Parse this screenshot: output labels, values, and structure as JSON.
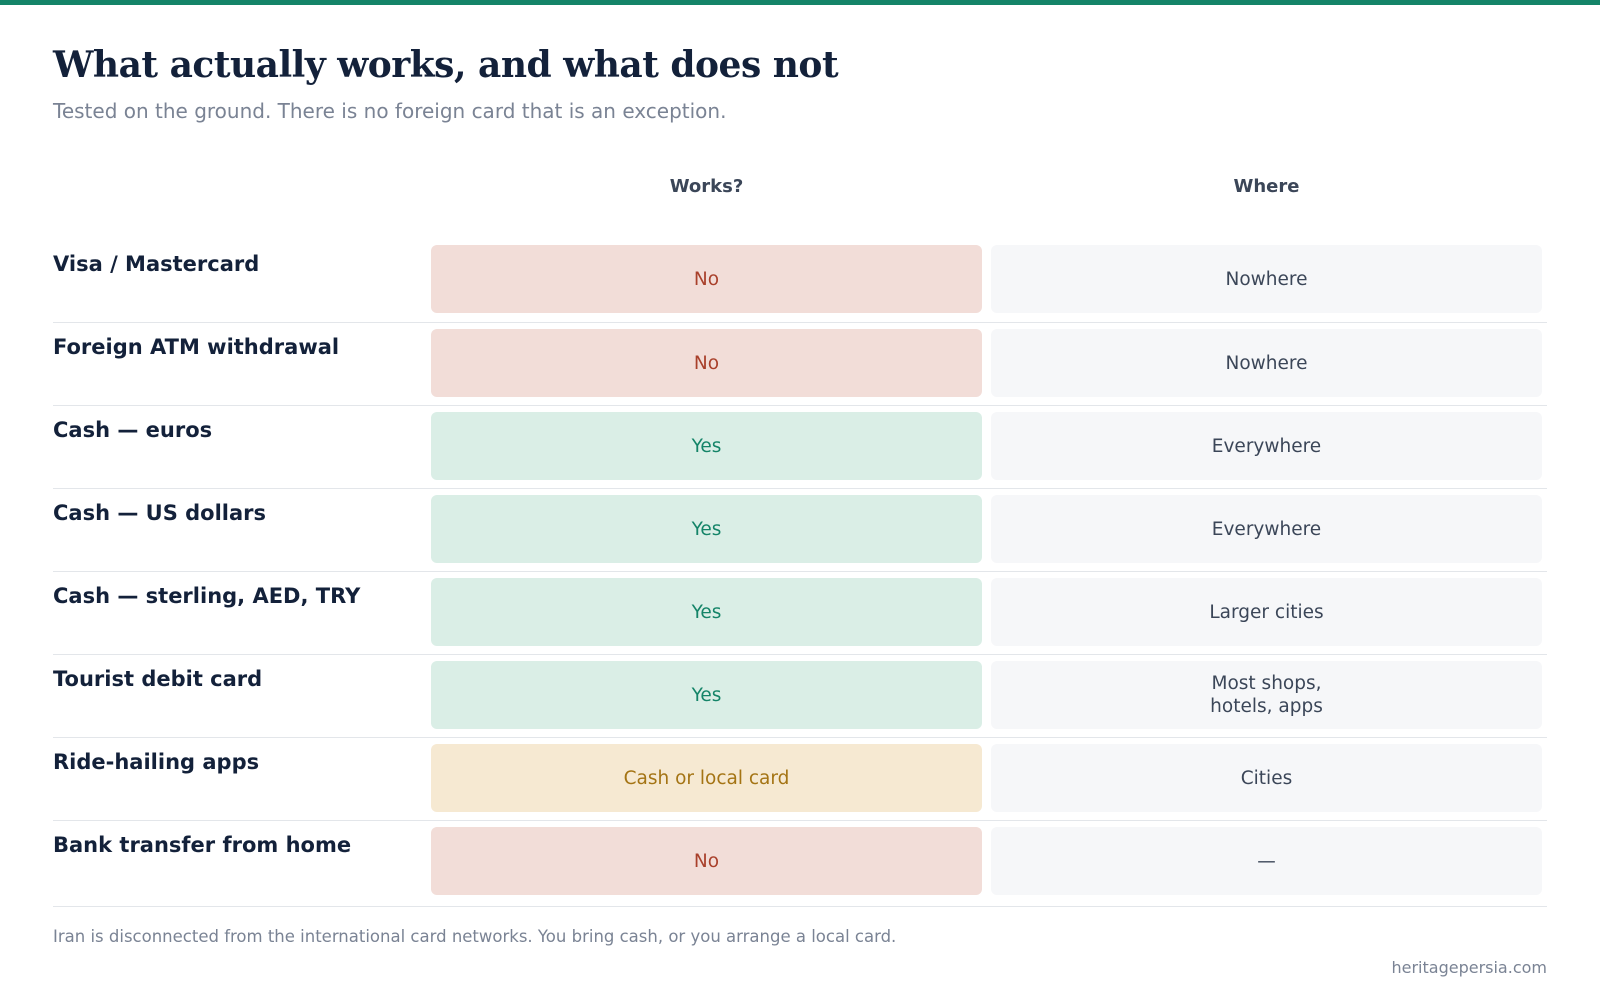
{
  "colors": {
    "accent": "#148468",
    "no_bg": "#f2ddd8",
    "no_text": "#a9402b",
    "yes_bg": "#daeee6",
    "yes_text": "#148468",
    "mixed_bg": "#f6e9d2",
    "mixed_text": "#a47414"
  },
  "header": {
    "title": "What actually works, and what does not",
    "subtitle": "Tested on the ground. There is no foreign card that is an exception."
  },
  "table": {
    "columns": [
      "",
      "Works?",
      "Where"
    ],
    "rows": [
      {
        "label": "Visa / Mastercard",
        "works": "No",
        "status": "no",
        "where": "Nowhere"
      },
      {
        "label": "Foreign ATM withdrawal",
        "works": "No",
        "status": "no",
        "where": "Nowhere"
      },
      {
        "label": "Cash — euros",
        "works": "Yes",
        "status": "yes",
        "where": "Everywhere"
      },
      {
        "label": "Cash — US dollars",
        "works": "Yes",
        "status": "yes",
        "where": "Everywhere"
      },
      {
        "label": "Cash — sterling, AED, TRY",
        "works": "Yes",
        "status": "yes",
        "where": "Larger cities"
      },
      {
        "label": "Tourist debit card",
        "works": "Yes",
        "status": "yes",
        "where": "Most shops,\nhotels, apps"
      },
      {
        "label": "Ride-hailing apps",
        "works": "Cash or local card",
        "status": "mixed",
        "where": "Cities"
      },
      {
        "label": "Bank transfer from home",
        "works": "No",
        "status": "no",
        "where": "—"
      }
    ]
  },
  "footer": {
    "note": "Iran is disconnected from the international card networks. You bring cash, or you arrange a local card.",
    "source": "heritagepersia.com"
  }
}
